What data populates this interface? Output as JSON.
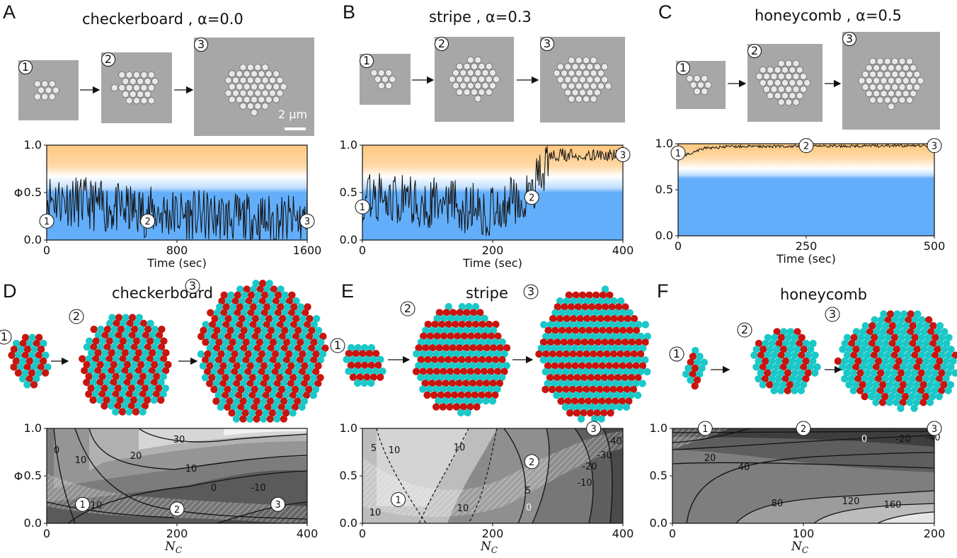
{
  "panels": {
    "A": {
      "letter": "A",
      "title": "checkerboard , α=0.0",
      "scale_bar": "2 μm"
    },
    "B": {
      "letter": "B",
      "title": "stripe , α=0.3"
    },
    "C": {
      "letter": "C",
      "title": "honeycomb , α=0.5"
    },
    "D": {
      "letter": "D",
      "title": "checkerboard"
    },
    "E": {
      "letter": "E",
      "title": "stripe"
    },
    "F": {
      "letter": "F",
      "title": "honeycomb"
    }
  },
  "markers": [
    "1",
    "2",
    "3"
  ],
  "arrow_glyph": "→",
  "chart_data": [
    {
      "panel": "A",
      "type": "line",
      "xlabel": "Time (sec)",
      "ylabel": "Φ",
      "xlim": [
        0,
        1600
      ],
      "ylim": [
        0,
        1
      ],
      "xticks": [
        "0",
        "800",
        "1600"
      ],
      "yticks": [
        "0.0",
        "0.5",
        "1.0"
      ],
      "markers": [
        {
          "label": "1",
          "x": 0,
          "y": 0.2
        },
        {
          "label": "2",
          "x": 620,
          "y": 0.2
        },
        {
          "label": "3",
          "x": 1600,
          "y": 0.2
        }
      ],
      "series": [
        {
          "mean_trend": [
            [
              0,
              0.45
            ],
            [
              200,
              0.4
            ],
            [
              400,
              0.33
            ],
            [
              800,
              0.27
            ],
            [
              1200,
              0.22
            ],
            [
              1600,
              0.2
            ]
          ]
        }
      ]
    },
    {
      "panel": "B",
      "type": "line",
      "xlabel": "Time (sec)",
      "ylabel": "",
      "xlim": [
        0,
        400
      ],
      "ylim": [
        0,
        1
      ],
      "xticks": [
        "0",
        "200",
        "400"
      ],
      "yticks": [
        "0.0",
        "0.5",
        "1.0"
      ],
      "markers": [
        {
          "label": "1",
          "x": 0,
          "y": 0.35
        },
        {
          "label": "2",
          "x": 260,
          "y": 0.45
        },
        {
          "label": "3",
          "x": 400,
          "y": 0.9
        }
      ],
      "series": [
        {
          "mean_trend": [
            [
              0,
              0.45
            ],
            [
              100,
              0.4
            ],
            [
              200,
              0.3
            ],
            [
              260,
              0.55
            ],
            [
              290,
              0.9
            ],
            [
              400,
              0.9
            ]
          ]
        }
      ]
    },
    {
      "panel": "C",
      "type": "line",
      "xlabel": "Time (sec)",
      "ylabel": "",
      "xlim": [
        0,
        500
      ],
      "ylim": [
        0,
        1
      ],
      "xticks": [
        "0",
        "250",
        "500"
      ],
      "yticks": [
        "0.0",
        "0.5",
        "1.0"
      ],
      "markers": [
        {
          "label": "1",
          "x": 0,
          "y": 0.9
        },
        {
          "label": "2",
          "x": 250,
          "y": 0.98
        },
        {
          "label": "3",
          "x": 500,
          "y": 0.98
        }
      ],
      "series": [
        {
          "mean_trend": [
            [
              0,
              0.85
            ],
            [
              50,
              0.95
            ],
            [
              100,
              0.97
            ],
            [
              500,
              0.98
            ]
          ]
        }
      ]
    },
    {
      "panel": "D",
      "type": "contour",
      "xlabel": "N_C",
      "ylabel": "Φ",
      "xlim": [
        0,
        400
      ],
      "ylim": [
        0,
        1
      ],
      "xticks": [
        "0",
        "200",
        "400"
      ],
      "yticks": [
        "0.0",
        "0.5",
        "1.0"
      ],
      "contour_labels": [
        "30",
        "20",
        "10",
        "0",
        "10",
        "0",
        "-10",
        "10"
      ],
      "markers": [
        {
          "label": "1",
          "x": 55,
          "y": 0.2
        },
        {
          "label": "2",
          "x": 200,
          "y": 0.15
        },
        {
          "label": "3",
          "x": 355,
          "y": 0.2
        }
      ]
    },
    {
      "panel": "E",
      "type": "contour",
      "xlabel": "N_C",
      "ylabel": "",
      "xlim": [
        0,
        400
      ],
      "ylim": [
        0,
        1
      ],
      "xticks": [
        "0",
        "200",
        "400"
      ],
      "yticks": [
        "0.0",
        "0.5",
        "1.0"
      ],
      "contour_labels": [
        "5",
        "10",
        "10",
        "-40",
        "-30",
        "-10",
        "-20",
        "0",
        "10",
        "5",
        "10"
      ],
      "markers": [
        {
          "label": "1",
          "x": 55,
          "y": 0.25
        },
        {
          "label": "2",
          "x": 260,
          "y": 0.65
        },
        {
          "label": "3",
          "x": 355,
          "y": 1.0
        }
      ]
    },
    {
      "panel": "F",
      "type": "contour",
      "xlabel": "N_C",
      "ylabel": "",
      "xlim": [
        0,
        200
      ],
      "ylim": [
        0,
        1
      ],
      "xticks": [
        "0",
        "100",
        "200"
      ],
      "yticks": [
        "0.0",
        "0.5",
        "1.0"
      ],
      "contour_labels": [
        "20",
        "0",
        "-20",
        "-40",
        "40",
        "80",
        "120",
        "160"
      ],
      "markers": [
        {
          "label": "1",
          "x": 25,
          "y": 1.0
        },
        {
          "label": "2",
          "x": 100,
          "y": 1.0
        },
        {
          "label": "3",
          "x": 200,
          "y": 1.0
        }
      ]
    }
  ],
  "colors": {
    "orange": "#ffc880",
    "blue": "#63aefa",
    "red": "#c8150f",
    "cyan": "#1ac8c8",
    "micrograph_bg": "#a7a7a7",
    "particle": "#e8e8e8"
  }
}
